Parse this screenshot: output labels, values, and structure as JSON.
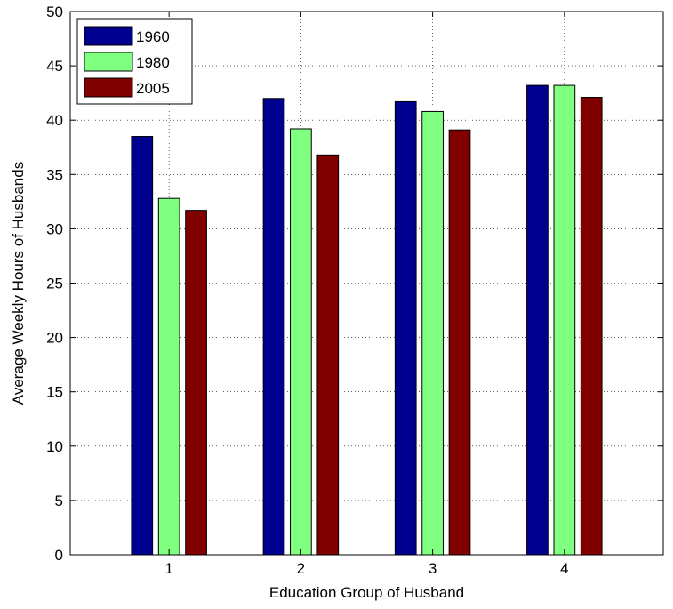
{
  "chart_data": {
    "type": "bar",
    "title": "",
    "xlabel": "Education Group of Husband",
    "ylabel": "Average Weekly Hours of Husbands",
    "categories": [
      "1",
      "2",
      "3",
      "4"
    ],
    "ylim": [
      0,
      50
    ],
    "xlim": [
      0.25,
      4.75
    ],
    "yticks": [
      0,
      5,
      10,
      15,
      20,
      25,
      30,
      35,
      40,
      45,
      50
    ],
    "grid": true,
    "legend_position": "top-left",
    "series": [
      {
        "name": "1960",
        "color": "#00008f",
        "values": [
          38.5,
          42.0,
          41.7,
          43.2
        ]
      },
      {
        "name": "1980",
        "color": "#80ff80",
        "values": [
          32.8,
          39.2,
          40.8,
          43.2
        ]
      },
      {
        "name": "2005",
        "color": "#800000",
        "values": [
          31.7,
          36.8,
          39.1,
          42.1
        ]
      }
    ]
  }
}
